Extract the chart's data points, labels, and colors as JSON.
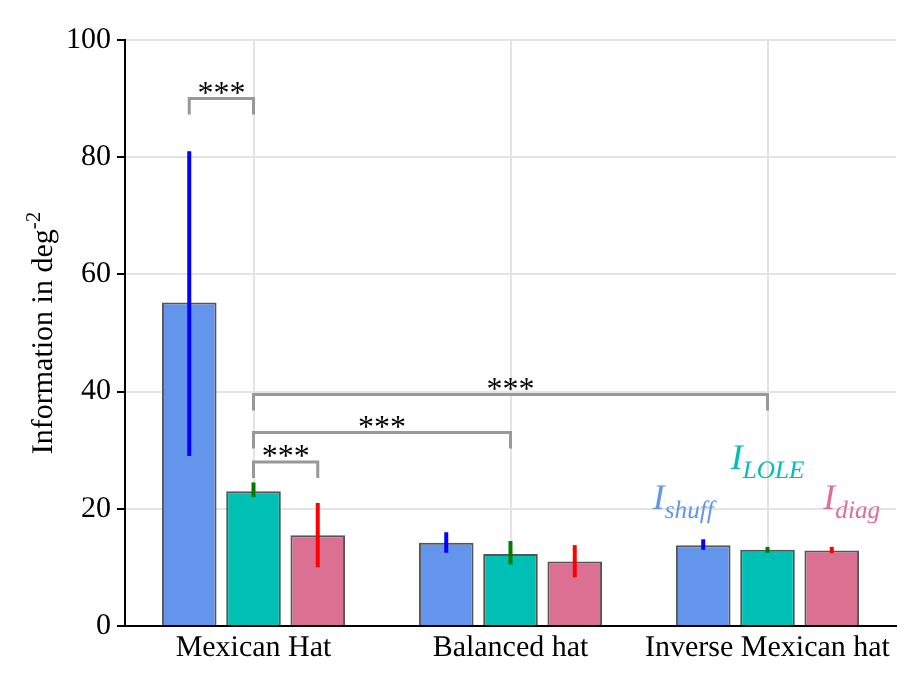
{
  "chart_data": {
    "type": "bar",
    "ylabel": "Information in deg$^{-2}$",
    "categories": [
      "Mexican Hat",
      "Balanced hat",
      "Inverse Mexican hat"
    ],
    "series": [
      {
        "name": "I$_{shuff}$",
        "color": "#6495ed",
        "values": [
          55.2,
          14.2,
          13.8
        ],
        "errors": [
          [
            29,
            81
          ],
          [
            12.5,
            16
          ],
          [
            13,
            14.8
          ]
        ]
      },
      {
        "name": "I$_{LOLE}$",
        "color": "#00bfb5",
        "values": [
          23,
          12.3,
          13
        ],
        "errors": [
          [
            22,
            24.5
          ],
          [
            10.5,
            14.5
          ],
          [
            12.5,
            13.5
          ]
        ]
      },
      {
        "name": "I$_{diag}$",
        "color": "#db7093",
        "values": [
          15.5,
          11,
          12.9
        ],
        "errors": [
          [
            10,
            21
          ],
          [
            8.3,
            13.8
          ],
          [
            12.4,
            13.5
          ]
        ]
      }
    ],
    "ylim": [
      0,
      100
    ],
    "yticks": [
      0,
      20,
      40,
      60,
      80,
      100
    ],
    "grid": true,
    "legend": false,
    "annotations": [
      "***",
      "***",
      "***",
      "***"
    ]
  }
}
